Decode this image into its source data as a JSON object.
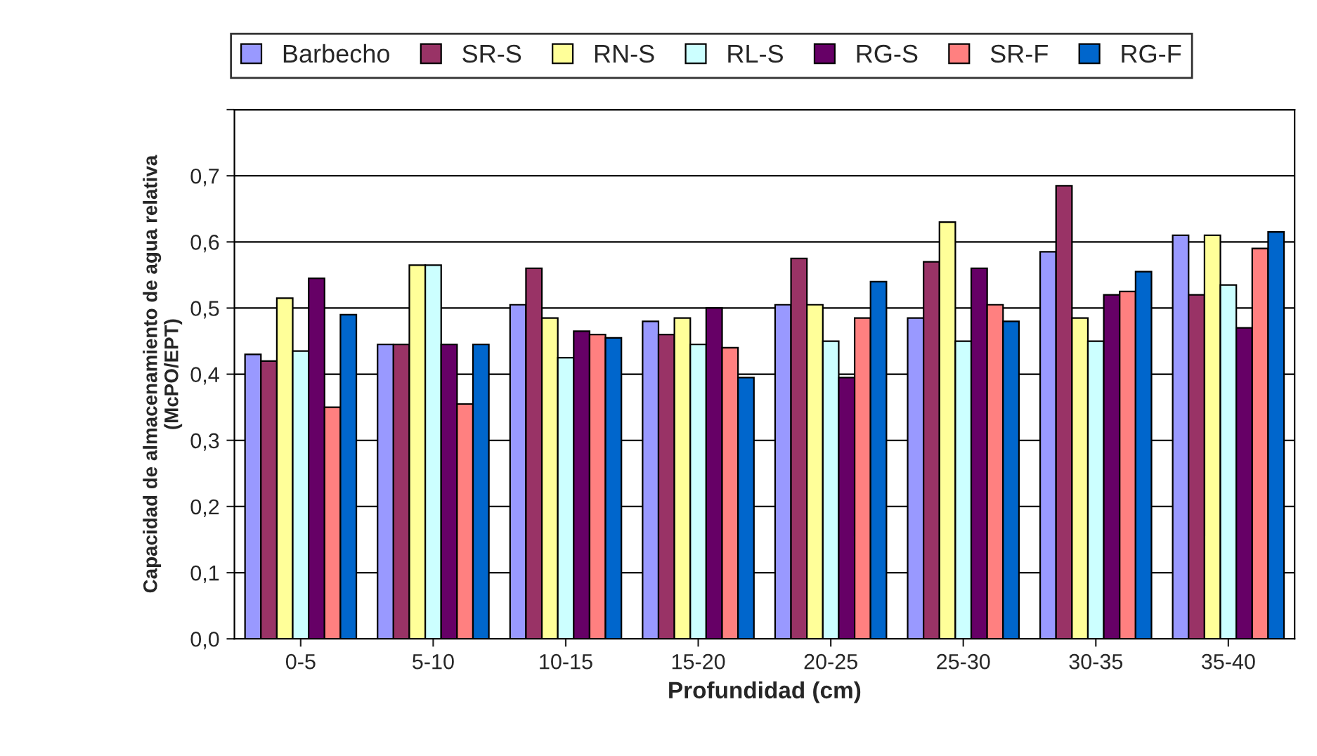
{
  "chart_data": {
    "type": "bar",
    "xlabel": "Profundidad (cm)",
    "ylabel": "Capacidad de almacenamiento de agua relativa\n(McPO/EPT)",
    "categories": [
      "0-5",
      "5-10",
      "10-15",
      "15-20",
      "20-25",
      "25-30",
      "30-35",
      "35-40"
    ],
    "series": [
      {
        "name": "Barbecho",
        "color": "#9999ff",
        "values": [
          0.43,
          0.445,
          0.505,
          0.48,
          0.505,
          0.485,
          0.585,
          0.61
        ]
      },
      {
        "name": "SR-S",
        "color": "#993366",
        "values": [
          0.42,
          0.445,
          0.56,
          0.46,
          0.575,
          0.57,
          0.685,
          0.52
        ]
      },
      {
        "name": "RN-S",
        "color": "#ffff99",
        "values": [
          0.515,
          0.565,
          0.485,
          0.485,
          0.505,
          0.63,
          0.485,
          0.61
        ]
      },
      {
        "name": "RL-S",
        "color": "#ccffff",
        "values": [
          0.435,
          0.565,
          0.425,
          0.445,
          0.45,
          0.45,
          0.45,
          0.535
        ]
      },
      {
        "name": "RG-S",
        "color": "#660066",
        "values": [
          0.545,
          0.445,
          0.465,
          0.5,
          0.395,
          0.56,
          0.52,
          0.47
        ]
      },
      {
        "name": "SR-F",
        "color": "#ff8080",
        "values": [
          0.35,
          0.355,
          0.46,
          0.44,
          0.485,
          0.505,
          0.525,
          0.59
        ]
      },
      {
        "name": "RG-F",
        "color": "#0066cc",
        "values": [
          0.49,
          0.445,
          0.455,
          0.395,
          0.54,
          0.48,
          0.555,
          0.615
        ]
      }
    ],
    "ylim": [
      0,
      0.8
    ],
    "yticks": [
      {
        "value": 0,
        "label": "0,0"
      },
      {
        "value": 0.1,
        "label": "0,1"
      },
      {
        "value": 0.2,
        "label": "0,2"
      },
      {
        "value": 0.3,
        "label": "0,3"
      },
      {
        "value": 0.4,
        "label": "0,4"
      },
      {
        "value": 0.5,
        "label": "0,5"
      },
      {
        "value": 0.6,
        "label": "0,6"
      },
      {
        "value": 0.7,
        "label": "0,7"
      },
      {
        "value": 0.8,
        "label": null
      }
    ],
    "grid": "y",
    "legend": "top"
  }
}
